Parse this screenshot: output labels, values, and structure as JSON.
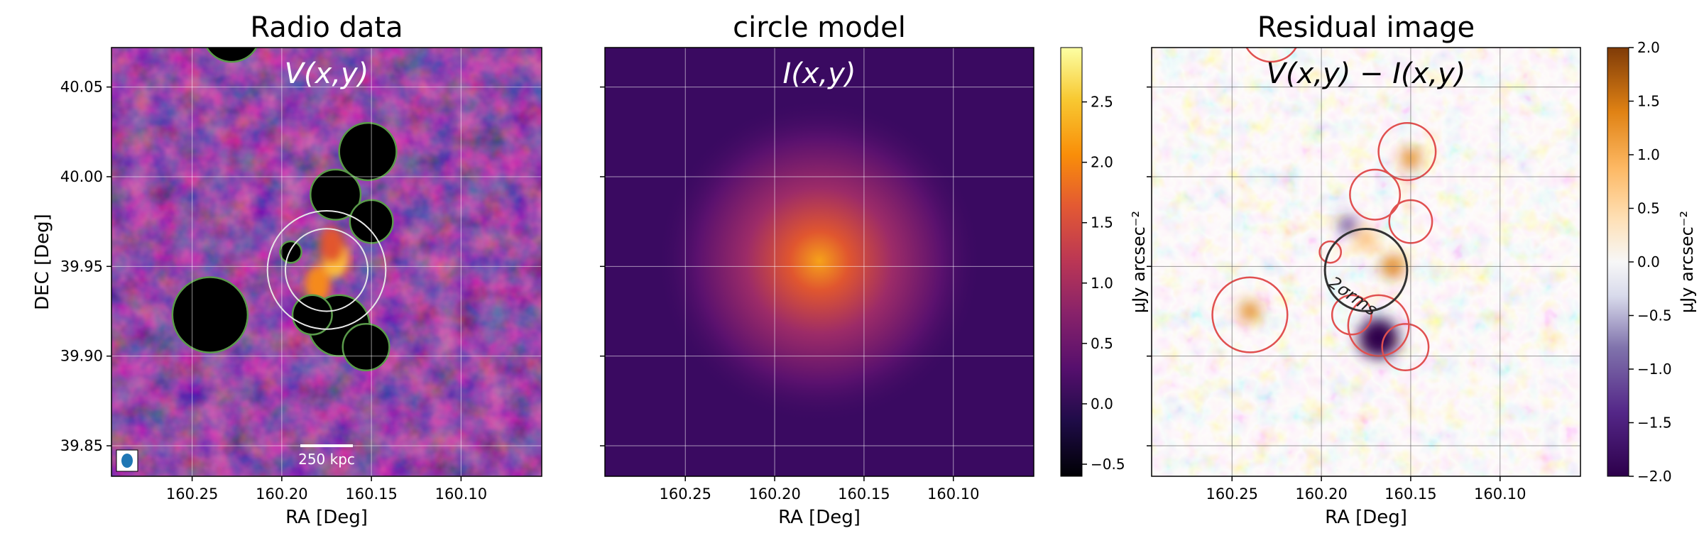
{
  "chart_data": [
    {
      "type": "heatmap",
      "title": "Radio data",
      "annotation": "V(x,y)",
      "xlabel": "RA [Deg]",
      "ylabel": "DEC [Deg]",
      "xlim": [
        160.295,
        160.055
      ],
      "ylim": [
        39.833,
        40.072
      ],
      "xticks": [
        160.25,
        160.2,
        160.15,
        160.1
      ],
      "xticklabels": [
        "160.25",
        "160.20",
        "160.15",
        "160.10"
      ],
      "yticks": [
        39.85,
        39.9,
        39.95,
        40.0,
        40.05
      ],
      "yticklabels": [
        "39.85",
        "39.90",
        "39.95",
        "40.00",
        "40.05"
      ],
      "grid": true,
      "colormap": "inferno",
      "scalebar_label": "250 kpc",
      "beam_color": "#1f77b4",
      "mask_contour_color": "#5a9a4a",
      "circles": [
        {
          "ra": 160.175,
          "dec": 39.948,
          "radius_deg": 0.023
        },
        {
          "ra": 160.175,
          "dec": 39.948,
          "radius_deg": 0.033
        }
      ],
      "masked_sources": [
        {
          "ra": 160.24,
          "dec": 39.923,
          "radius_deg": 0.021
        },
        {
          "ra": 160.152,
          "dec": 40.014,
          "radius_deg": 0.016
        },
        {
          "ra": 160.17,
          "dec": 39.99,
          "radius_deg": 0.014
        },
        {
          "ra": 160.15,
          "dec": 39.975,
          "radius_deg": 0.012
        },
        {
          "ra": 160.168,
          "dec": 39.917,
          "radius_deg": 0.017
        },
        {
          "ra": 160.153,
          "dec": 39.905,
          "radius_deg": 0.013
        },
        {
          "ra": 160.183,
          "dec": 39.923,
          "radius_deg": 0.011
        },
        {
          "ra": 160.195,
          "dec": 39.958,
          "radius_deg": 0.006
        },
        {
          "ra": 160.228,
          "dec": 40.08,
          "radius_deg": 0.016
        }
      ],
      "bright_blobs": [
        {
          "ra": 160.17,
          "dec": 39.955,
          "amp": 2.7
        },
        {
          "ra": 160.18,
          "dec": 39.94,
          "amp": 2.3
        },
        {
          "ra": 160.172,
          "dec": 39.962,
          "amp": 2.0
        }
      ]
    },
    {
      "type": "heatmap",
      "title": "circle model",
      "annotation": "I(x,y)",
      "xlabel": "RA [Deg]",
      "ylabel": "",
      "xlim": [
        160.295,
        160.055
      ],
      "ylim": [
        39.833,
        40.072
      ],
      "xticks": [
        160.25,
        160.2,
        160.15,
        160.1
      ],
      "xticklabels": [
        "160.25",
        "160.20",
        "160.15",
        "160.10"
      ],
      "grid": true,
      "colormap": "inferno",
      "model": {
        "center_ra": 160.175,
        "center_dec": 39.953,
        "peak": 1.75,
        "background": 0.15
      },
      "colorbar": {
        "label": "μJy arcsec⁻²",
        "vmin": -0.6,
        "vmax": 2.95,
        "ticks": [
          -0.5,
          0.0,
          0.5,
          1.0,
          1.5,
          2.0,
          2.5
        ],
        "ticklabels": [
          "−0.5",
          "0.0",
          "0.5",
          "1.0",
          "1.5",
          "2.0",
          "2.5"
        ]
      }
    },
    {
      "type": "heatmap",
      "title": "Residual image",
      "annotation": "V(x,y) − I(x,y)",
      "xlabel": "RA [Deg]",
      "ylabel": "",
      "xlim": [
        160.295,
        160.055
      ],
      "ylim": [
        39.833,
        40.072
      ],
      "xticks": [
        160.25,
        160.2,
        160.15,
        160.1
      ],
      "xticklabels": [
        "160.25",
        "160.20",
        "160.15",
        "160.10"
      ],
      "grid": true,
      "colormap": "PuOr_r",
      "mask_contour_color": "#e05050",
      "circle_label": "2σrms",
      "circle": {
        "ra": 160.175,
        "dec": 39.948,
        "radius_deg": 0.023
      },
      "colorbar": {
        "label": "μJy arcsec⁻²",
        "vmin": -2.0,
        "vmax": 2.0,
        "ticks": [
          -2.0,
          -1.5,
          -1.0,
          -0.5,
          0.0,
          0.5,
          1.0,
          1.5,
          2.0
        ],
        "ticklabels": [
          "−2.0",
          "−1.5",
          "−1.0",
          "−0.5",
          "0.0",
          "0.5",
          "1.0",
          "1.5",
          "2.0"
        ]
      }
    }
  ]
}
